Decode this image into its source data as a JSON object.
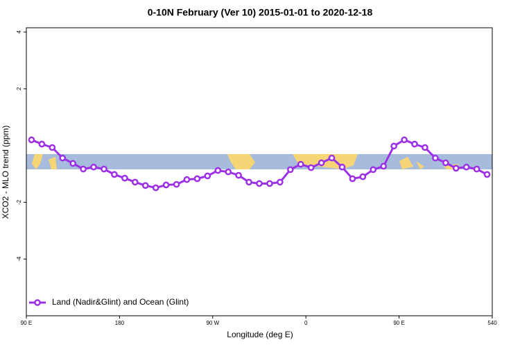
{
  "chart_data": {
    "type": "line",
    "title": "0-10N February (Ver 10)   2015-01-01 to 2020-12-18",
    "x_label": "Longitude (deg E)",
    "y_label": "XCO2 - MLO trend (ppm)",
    "x": [
      95,
      105,
      115,
      125,
      135,
      145,
      155,
      165,
      175,
      185,
      195,
      205,
      215,
      225,
      235,
      245,
      255,
      265,
      275,
      285,
      295,
      305,
      315,
      325,
      335,
      345,
      355,
      365,
      375,
      385,
      395,
      405,
      415,
      425,
      435,
      445,
      455,
      465,
      475,
      485,
      495,
      505,
      515,
      525,
      535
    ],
    "series": [
      {
        "name": "Land (Nadir&Glint) and Ocean (Glint)",
        "color": "#9b30e6",
        "values": [
          0.2,
          0.05,
          -0.07,
          -0.44,
          -0.63,
          -0.83,
          -0.76,
          -0.83,
          -1.02,
          -1.15,
          -1.29,
          -1.41,
          -1.49,
          -1.39,
          -1.37,
          -1.2,
          -1.17,
          -1.07,
          -0.88,
          -0.93,
          -1.05,
          -1.29,
          -1.34,
          -1.34,
          -1.29,
          -0.85,
          -0.66,
          -0.78,
          -0.61,
          -0.44,
          -0.76,
          -1.17,
          -1.1,
          -0.85,
          -0.73,
          -0.02,
          0.2,
          0.05,
          -0.07,
          -0.44,
          -0.61,
          -0.8,
          -0.76,
          -0.83,
          -1.02
        ]
      }
    ],
    "xlim": [
      90,
      540
    ],
    "xticks": [
      {
        "value": 90,
        "label": "90 E"
      },
      180,
      {
        "value": 270,
        "label": "90 W"
      },
      {
        "value": 360,
        "label": "0"
      },
      {
        "value": 450,
        "label": "90 E"
      },
      540
    ],
    "ylim": [
      -6,
      4.15
    ],
    "yticks": [
      -4,
      -2,
      2,
      4
    ],
    "legend": "bottom-left"
  }
}
